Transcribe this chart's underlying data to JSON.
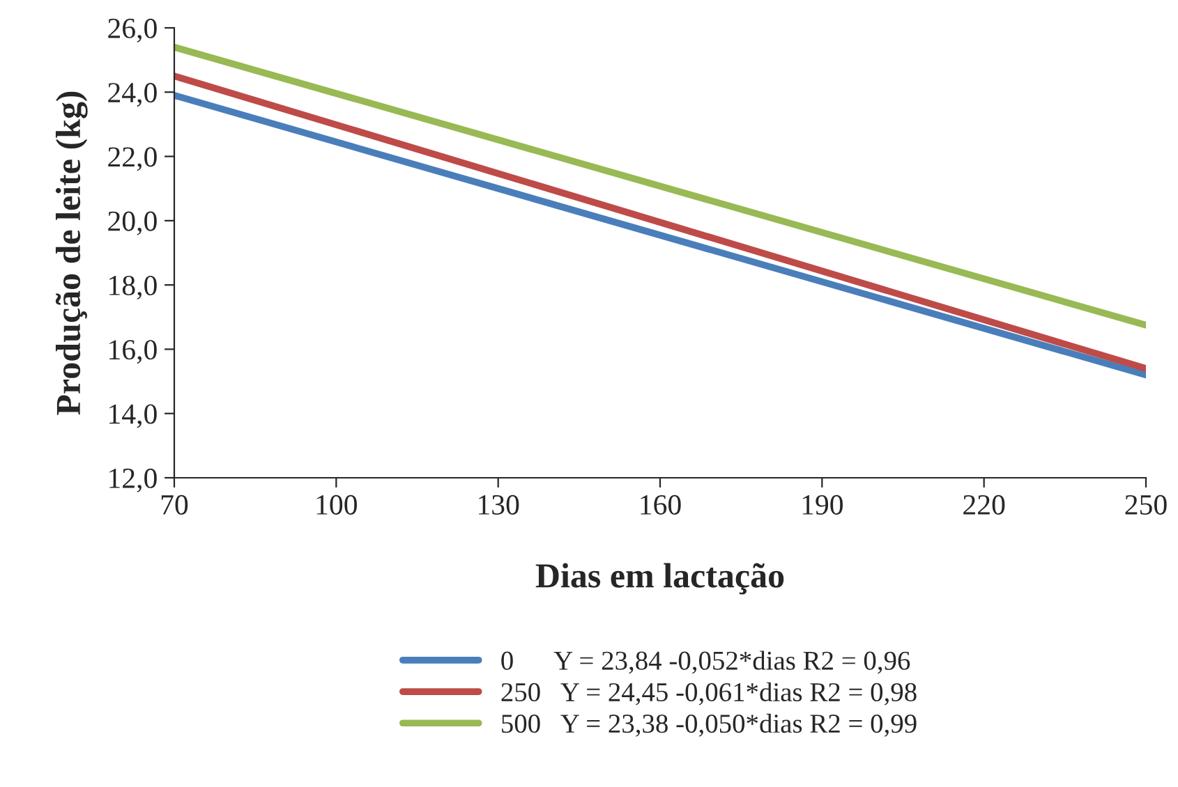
{
  "chart_data": {
    "type": "line",
    "xlabel": "Dias em lactação",
    "ylabel": "Produção de leite (kg)",
    "x": [
      70,
      250
    ],
    "series": [
      {
        "name": "0      Y = 23,84 -0,052*dias R2 = 0,96",
        "color": "#4a7ebb",
        "values": [
          23.9,
          15.2
        ]
      },
      {
        "name": "250   Y = 24,45 -0,061*dias R2 = 0,98",
        "color": "#be4b48",
        "values": [
          24.5,
          15.4
        ]
      },
      {
        "name": "500   Y = 23,38 -0,050*dias R2 = 0,99",
        "color": "#98b954",
        "values": [
          25.4,
          16.75
        ]
      }
    ],
    "xlim": [
      70,
      250
    ],
    "xticks": [
      70,
      100,
      130,
      160,
      190,
      220,
      250
    ],
    "ylim": [
      12,
      26
    ],
    "yticks": [
      {
        "value": 12,
        "label": "12,0"
      },
      {
        "value": 14,
        "label": "14,0"
      },
      {
        "value": 16,
        "label": "16,0"
      },
      {
        "value": 18,
        "label": "18,0"
      },
      {
        "value": 20,
        "label": "20,0"
      },
      {
        "value": 22,
        "label": "22,0"
      },
      {
        "value": 24,
        "label": "24,0"
      },
      {
        "value": 26,
        "label": "26,0"
      }
    ],
    "grid": false,
    "legend": "bottom",
    "marker": "none",
    "line_style": "solid"
  }
}
